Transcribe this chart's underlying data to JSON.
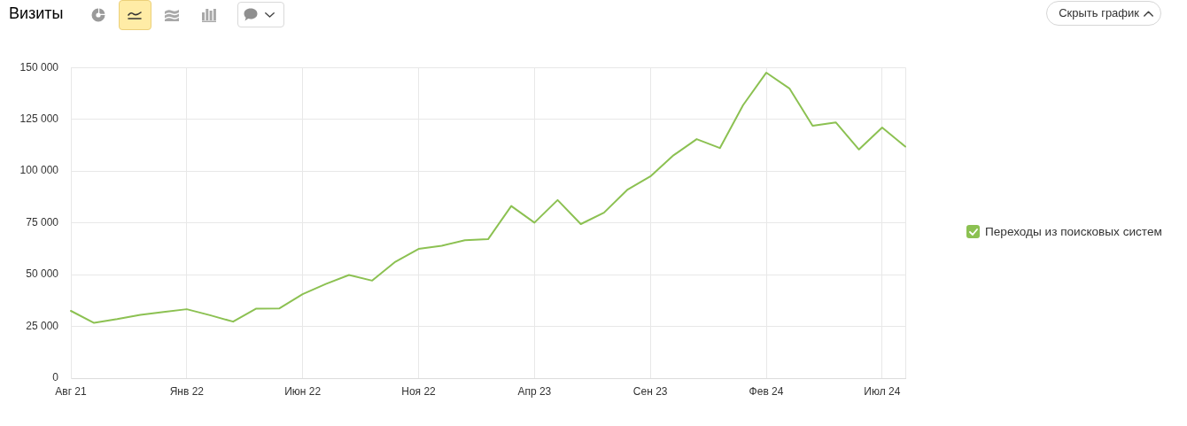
{
  "chart_data": {
    "type": "line",
    "title": "Визиты",
    "categories": [
      "Авг 21",
      null,
      null,
      null,
      null,
      "Янв 22",
      null,
      null,
      null,
      null,
      "Июн 22",
      null,
      null,
      null,
      null,
      "Ноя 22",
      null,
      null,
      null,
      null,
      "Апр 23",
      null,
      null,
      null,
      null,
      "Сен 23",
      null,
      null,
      null,
      null,
      "Фев 24",
      null,
      null,
      null,
      null,
      "Июл 24",
      null
    ],
    "series": [
      {
        "name": "Переходы из поисковых систем",
        "color": "#8cc152",
        "values": [
          32500,
          26700,
          28500,
          30600,
          32000,
          33300,
          30400,
          27300,
          33600,
          33700,
          40600,
          45500,
          49800,
          47100,
          56200,
          62400,
          63900,
          66600,
          67100,
          83100,
          75100,
          86000,
          74400,
          79900,
          90900,
          97400,
          107600,
          115400,
          111100,
          131800,
          147500,
          139900,
          121900,
          123500,
          110400,
          121000,
          111800
        ]
      }
    ],
    "ylim": [
      0,
      150000
    ],
    "yticks": [
      0,
      {
        "value": 25000,
        "label": "25 000"
      },
      {
        "value": 50000,
        "label": "50 000"
      },
      {
        "value": 75000,
        "label": "75 000"
      },
      {
        "value": 100000,
        "label": "100 000"
      },
      {
        "value": 125000,
        "label": "125 000"
      },
      {
        "value": 150000,
        "label": "150 000"
      }
    ],
    "grid": true,
    "legend": "right",
    "annotations": [
      "Скрыть график"
    ]
  }
}
